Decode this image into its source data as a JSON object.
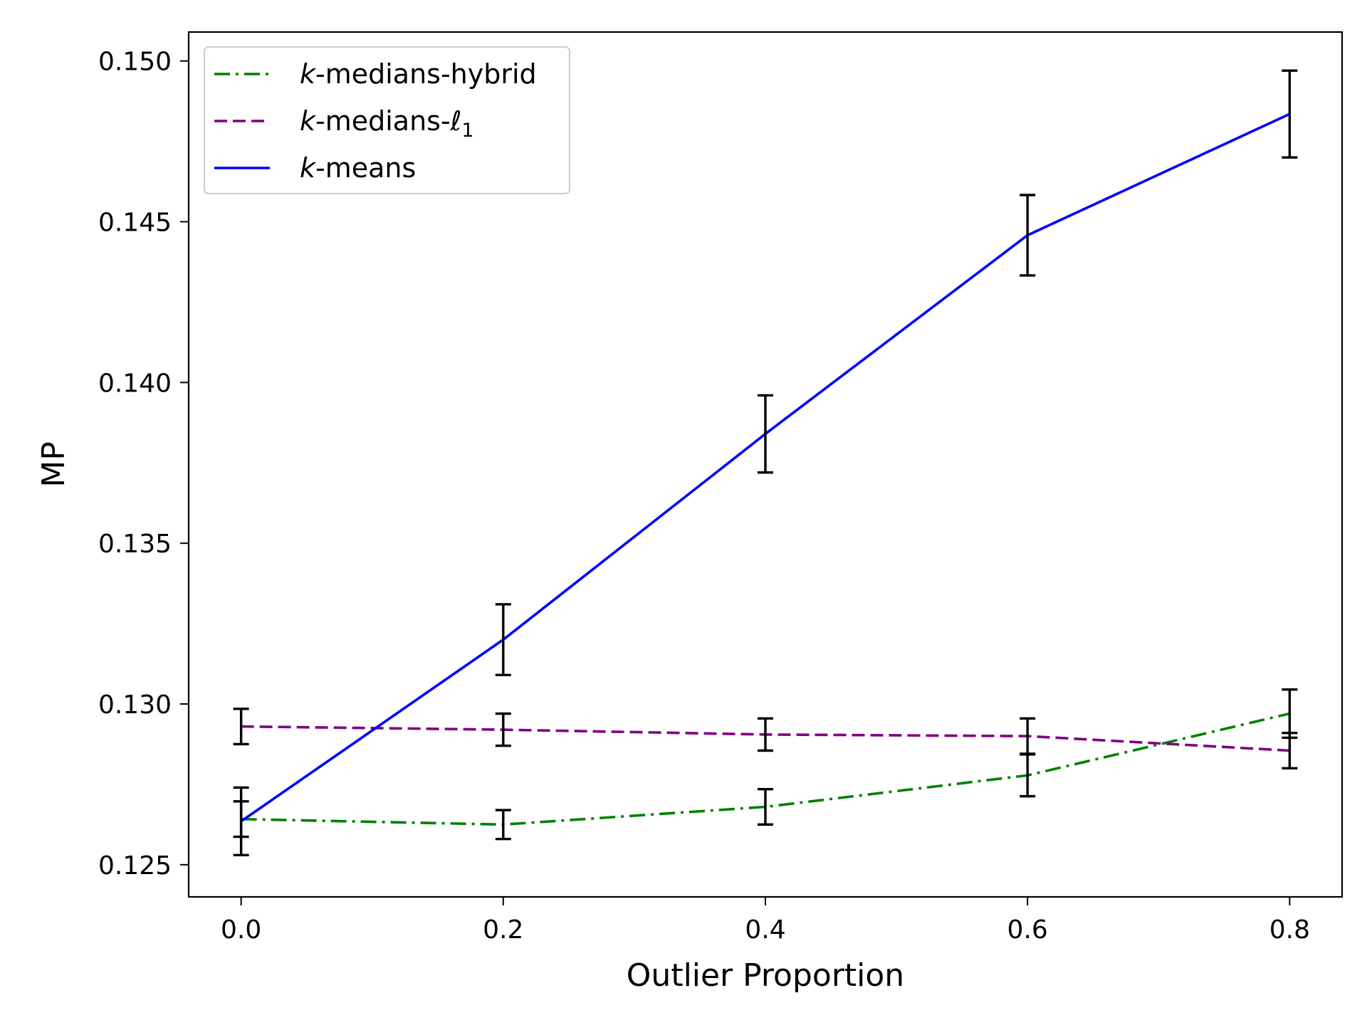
{
  "chart_data": {
    "type": "line",
    "xlabel": "Outlier Proportion",
    "ylabel": "MP",
    "x": [
      0.0,
      0.2,
      0.4,
      0.6,
      0.8
    ],
    "x_tick_labels": [
      "0.0",
      "0.2",
      "0.4",
      "0.6",
      "0.8"
    ],
    "y_tick_labels": [
      "0.125",
      "0.130",
      "0.135",
      "0.140",
      "0.145",
      "0.150"
    ],
    "y_ticks": [
      0.125,
      0.13,
      0.135,
      0.14,
      0.145,
      0.15
    ],
    "xlim": [
      -0.04,
      0.84
    ],
    "ylim": [
      0.124,
      0.1509
    ],
    "grid": false,
    "legend_position": "top-left",
    "series": [
      {
        "name": "k-medians-hybrid",
        "legend_italic": "k",
        "legend_rest": "-medians-hybrid",
        "color": "#008000",
        "style": "dashdot",
        "values": [
          0.12642,
          0.12625,
          0.1268,
          0.12778,
          0.1297
        ],
        "errors": [
          0.00055,
          0.00045,
          0.00055,
          0.00065,
          0.00075
        ]
      },
      {
        "name": "k-medians-ℓ1",
        "legend_italic": "k",
        "legend_rest": "-medians-ℓ",
        "legend_sub": "1",
        "color": "#800080",
        "style": "dashed",
        "values": [
          0.1293,
          0.1292,
          0.12905,
          0.129,
          0.12855
        ],
        "errors": [
          0.00055,
          0.0005,
          0.0005,
          0.00055,
          0.00055
        ]
      },
      {
        "name": "k-means",
        "legend_italic": "k",
        "legend_rest": "-means",
        "color": "#0000ff",
        "style": "solid",
        "values": [
          0.12635,
          0.132,
          0.1384,
          0.14458,
          0.14835
        ],
        "errors": [
          0.00105,
          0.0011,
          0.0012,
          0.00125,
          0.00135
        ]
      }
    ],
    "errorbar_color": "#000000"
  }
}
